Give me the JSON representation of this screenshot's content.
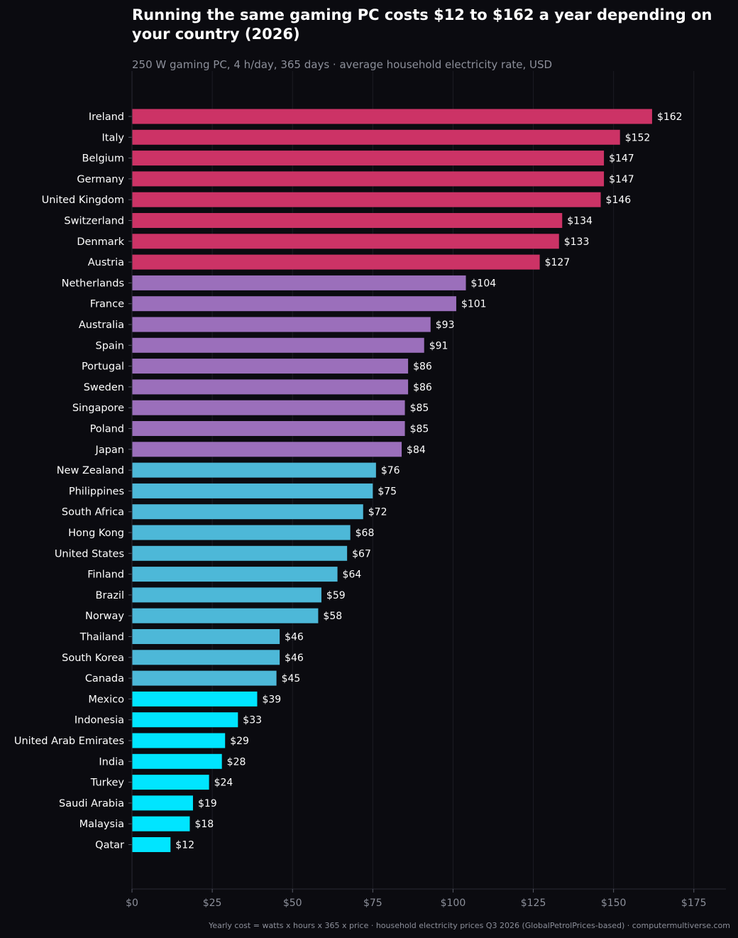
{
  "title": "Running the same gaming PC costs $12 to $162 a year depending on your country (2026)",
  "subtitle": "250 W gaming PC, 4 h/day, 365 days  ·  average household electricity rate, USD",
  "footer": "Yearly cost = watts x hours x 365 x price  ·  household electricity prices Q3 2026 (GlobalPetrolPrices-based)  ·  computermultiverse.com",
  "colors": {
    "background": "#0b0b10",
    "high_tier": "#cc3366",
    "upper_mid_tier": "#9b6fbb",
    "lower_mid_tier": "#4db8d8",
    "low_tier": "#00e5ff",
    "gridline": "#1c1c24",
    "axis_text": "#8c8f9a",
    "label_text": "#ffffff"
  },
  "chart_data": {
    "type": "bar",
    "orientation": "horizontal",
    "categories": [
      "Ireland",
      "Italy",
      "Belgium",
      "Germany",
      "United Kingdom",
      "Switzerland",
      "Denmark",
      "Austria",
      "Netherlands",
      "France",
      "Australia",
      "Spain",
      "Portugal",
      "Sweden",
      "Singapore",
      "Poland",
      "Japan",
      "New Zealand",
      "Philippines",
      "South Africa",
      "Hong Kong",
      "United States",
      "Finland",
      "Brazil",
      "Norway",
      "Thailand",
      "South Korea",
      "Canada",
      "Mexico",
      "Indonesia",
      "United Arab Emirates",
      "India",
      "Turkey",
      "Saudi Arabia",
      "Malaysia",
      "Qatar"
    ],
    "values": [
      162,
      152,
      147,
      147,
      146,
      134,
      133,
      127,
      104,
      101,
      93,
      91,
      86,
      86,
      85,
      85,
      84,
      76,
      75,
      72,
      68,
      67,
      64,
      59,
      58,
      46,
      46,
      45,
      39,
      33,
      29,
      28,
      24,
      19,
      18,
      12
    ],
    "data_labels": [
      "$162",
      "$152",
      "$147",
      "$147",
      "$146",
      "$134",
      "$133",
      "$127",
      "$104",
      "$101",
      "$93",
      "$91",
      "$86",
      "$86",
      "$85",
      "$85",
      "$84",
      "$76",
      "$75",
      "$72",
      "$68",
      "$67",
      "$64",
      "$59",
      "$58",
      "$46",
      "$46",
      "$45",
      "$39",
      "$33",
      "$29",
      "$28",
      "$24",
      "$19",
      "$18",
      "$12"
    ],
    "tiers": [
      "high",
      "high",
      "high",
      "high",
      "high",
      "high",
      "high",
      "high",
      "upper_mid",
      "upper_mid",
      "upper_mid",
      "upper_mid",
      "upper_mid",
      "upper_mid",
      "upper_mid",
      "upper_mid",
      "upper_mid",
      "lower_mid",
      "lower_mid",
      "lower_mid",
      "lower_mid",
      "lower_mid",
      "lower_mid",
      "lower_mid",
      "lower_mid",
      "lower_mid",
      "lower_mid",
      "lower_mid",
      "low",
      "low",
      "low",
      "low",
      "low",
      "low",
      "low",
      "low"
    ],
    "xlim": [
      0,
      185
    ],
    "xticks": [
      0,
      25,
      50,
      75,
      100,
      125,
      150,
      175
    ],
    "xtick_labels": [
      "$0",
      "$25",
      "$50",
      "$75",
      "$100",
      "$125",
      "$150",
      "$175"
    ],
    "grid": "vertical",
    "legend": "none"
  }
}
